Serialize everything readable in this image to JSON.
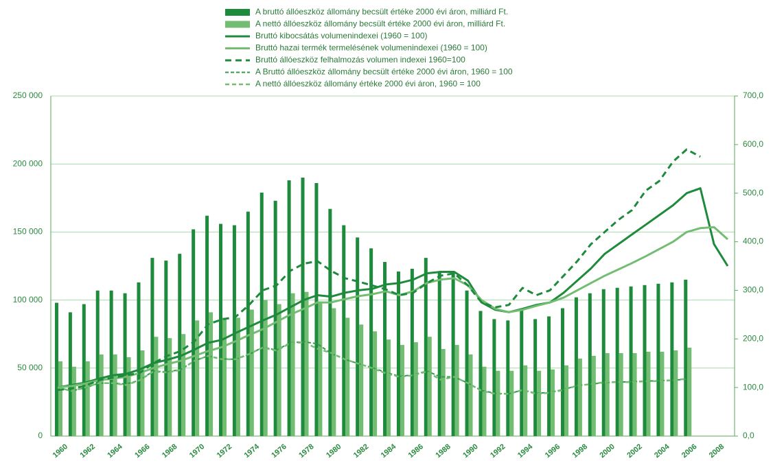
{
  "chart_data": {
    "type": "bar-line",
    "categories": [
      "1960",
      null,
      "1962",
      null,
      "1964",
      null,
      "1966",
      null,
      "1968",
      null,
      "1970",
      null,
      "1972",
      null,
      "1974",
      null,
      "1976",
      null,
      "1978",
      null,
      "1980",
      null,
      "1982",
      null,
      "1984",
      null,
      "1986",
      null,
      "1988",
      null,
      "1990",
      null,
      "1992",
      null,
      "1994",
      null,
      "1996",
      null,
      "1998",
      null,
      "2000",
      null,
      "2002",
      null,
      "2004",
      null,
      "2006",
      null,
      "2008",
      null
    ],
    "ylim": [
      0,
      250000
    ],
    "yticks": [
      0,
      {
        "value": 50000,
        "label": "50 000"
      },
      {
        "value": 100000,
        "label": "100 000"
      },
      {
        "value": 150000,
        "label": "150 000"
      },
      {
        "value": 200000,
        "label": "200 000"
      },
      {
        "value": 250000,
        "label": "250 000"
      }
    ],
    "y2lim": [
      0,
      700
    ],
    "y2ticks": [
      {
        "value": 0,
        "label": "0,0"
      },
      {
        "value": 100,
        "label": "100,0"
      },
      {
        "value": 200,
        "label": "200,0"
      },
      {
        "value": 300,
        "label": "300,0"
      },
      {
        "value": 400,
        "label": "400,0"
      },
      {
        "value": 500,
        "label": "500,0"
      },
      {
        "value": 600,
        "label": "600,0"
      },
      {
        "value": 700,
        "label": "700,0"
      }
    ],
    "grid": true,
    "series": [
      {
        "name": "A bruttó állóeszköz állomány becsült értéke 2000 évi áron, milliárd Ft.",
        "type": "bar",
        "color": "#1e8a3c",
        "values": [
          98000,
          91000,
          97000,
          107000,
          107000,
          105000,
          113000,
          131000,
          129000,
          134000,
          152000,
          162000,
          156000,
          155000,
          165000,
          179000,
          173000,
          188000,
          190000,
          186000,
          167000,
          155000,
          146000,
          138000,
          128000,
          121000,
          123000,
          131000,
          120000,
          120000,
          107000,
          92000,
          86000,
          85000,
          93000,
          86000,
          88000,
          94000,
          102000,
          105000,
          108000,
          109000,
          110000,
          111000,
          112000,
          113000,
          115000,
          null,
          null,
          null
        ]
      },
      {
        "name": "A nettó állóeszköz állomány becsült értéke 2000 évi áron, milliárd Ft.",
        "type": "bar",
        "color": "#72bd72",
        "values": [
          55000,
          51000,
          55000,
          60000,
          60000,
          58000,
          63000,
          73000,
          72000,
          75000,
          85000,
          91000,
          87000,
          87000,
          93000,
          100000,
          97000,
          105000,
          106000,
          99000,
          94000,
          87000,
          82000,
          77000,
          71000,
          67000,
          69000,
          73000,
          64000,
          67000,
          60000,
          51000,
          48000,
          48000,
          52000,
          48000,
          49000,
          52000,
          57000,
          59000,
          61000,
          61000,
          61000,
          62000,
          62000,
          63000,
          65000,
          null,
          null,
          null
        ]
      },
      {
        "name": "Bruttó kibocsátás volumenindexei (1960 = 100)",
        "type": "line",
        "axis": "y2",
        "color": "#1e8a3c",
        "dash": "none",
        "width": 3,
        "values": [
          100,
          105,
          110,
          118,
          125,
          128,
          137,
          150,
          157,
          165,
          178,
          192,
          198,
          212,
          225,
          238,
          250,
          265,
          280,
          290,
          287,
          295,
          300,
          303,
          312,
          315,
          322,
          335,
          338,
          338,
          320,
          275,
          260,
          255,
          262,
          270,
          275,
          295,
          320,
          345,
          375,
          395,
          415,
          435,
          455,
          475,
          500,
          510,
          395,
          350
        ]
      },
      {
        "name": "Bruttó hazai termék termelésének volumenindexei (1960 = 100)",
        "type": "line",
        "axis": "y2",
        "color": "#72bd72",
        "dash": "none",
        "width": 3,
        "values": [
          100,
          103,
          108,
          115,
          118,
          122,
          130,
          140,
          148,
          155,
          165,
          175,
          183,
          195,
          208,
          220,
          235,
          250,
          262,
          275,
          275,
          282,
          288,
          292,
          298,
          290,
          298,
          315,
          322,
          325,
          310,
          280,
          262,
          255,
          260,
          268,
          275,
          285,
          300,
          315,
          330,
          343,
          356,
          370,
          385,
          400,
          420,
          428,
          430,
          405
        ]
      },
      {
        "name": "Bruttó állóeszköz felhalmozás volumen indexei 1960=100",
        "type": "line",
        "axis": "y2",
        "color": "#1e8a3c",
        "dash": "9,6",
        "width": 3,
        "values": [
          95,
          98,
          103,
          115,
          120,
          125,
          130,
          150,
          165,
          175,
          195,
          230,
          240,
          245,
          270,
          300,
          310,
          340,
          355,
          360,
          340,
          325,
          318,
          310,
          302,
          290,
          295,
          315,
          330,
          335,
          310,
          275,
          265,
          270,
          305,
          290,
          300,
          330,
          360,
          395,
          420,
          445,
          465,
          505,
          525,
          565,
          590,
          575,
          null,
          null
        ]
      },
      {
        "name": "A Bruttó állóeszköz állomány becsült értéke 2000 évi áron, 1960 = 100",
        "type": "line",
        "axis": "y2",
        "color": "#2f9a48",
        "dash": "5,3",
        "width": 2,
        "values": [
          100,
          93,
          99,
          109,
          109,
          107,
          115,
          134,
          132,
          137,
          155,
          165,
          159,
          158,
          168,
          183,
          177,
          192,
          194,
          190,
          170,
          158,
          149,
          141,
          131,
          123,
          126,
          134,
          122,
          122,
          109,
          94,
          88,
          87,
          95,
          88,
          90,
          96,
          104,
          107,
          110,
          111,
          112,
          113,
          114,
          115,
          117,
          null,
          null,
          null
        ]
      },
      {
        "name": "A nettó állóeszköz állomány értéke 2000 évi áron, 1960 = 100",
        "type": "line",
        "axis": "y2",
        "color": "#72bd72",
        "dash": "6,4",
        "width": 2.5,
        "values": [
          100,
          93,
          100,
          109,
          109,
          105,
          115,
          133,
          131,
          136,
          155,
          165,
          158,
          158,
          169,
          182,
          176,
          191,
          193,
          180,
          171,
          158,
          149,
          140,
          129,
          122,
          125,
          133,
          116,
          122,
          109,
          93,
          87,
          87,
          95,
          87,
          89,
          95,
          104,
          107,
          111,
          111,
          111,
          113,
          113,
          115,
          118,
          null,
          null,
          null
        ]
      }
    ]
  }
}
